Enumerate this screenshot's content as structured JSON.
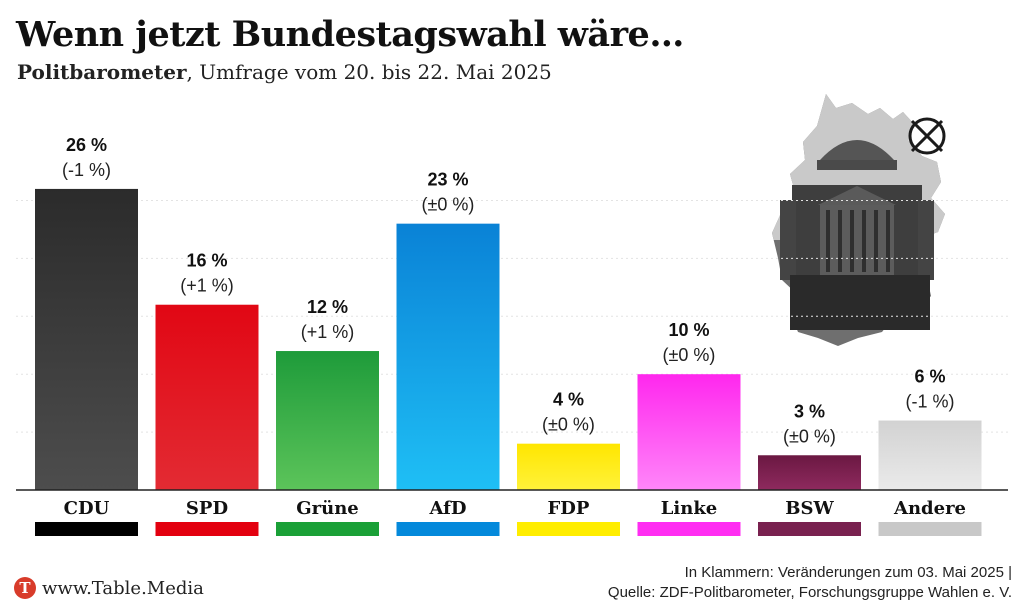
{
  "header": {
    "title": "Wenn jetzt Bundestagswahl wäre…",
    "subtitle_bold": "Politbarometer",
    "subtitle_rest": ", Umfrage vom 20. bis 22. Mai 2025"
  },
  "chart_data": {
    "type": "bar",
    "categories": [
      "CDU",
      "SPD",
      "Grüne",
      "AfD",
      "FDP",
      "Linke",
      "BSW",
      "Andere"
    ],
    "values": [
      26,
      16,
      12,
      23,
      4,
      10,
      3,
      6
    ],
    "value_labels": [
      "26 %",
      "16 %",
      "12 %",
      "23 %",
      "4 %",
      "10 %",
      "3 %",
      "6 %"
    ],
    "change_labels": [
      "(-1 %)",
      "(+1 %)",
      "(+1 %)",
      "(±0 %)",
      "(±0 %)",
      "(±0 %)",
      "(±0 %)",
      "(-1 %)"
    ],
    "colors": [
      {
        "top": "#2b2b2b",
        "bottom": "#4d4d4d",
        "swatch": "#000000"
      },
      {
        "top": "#e10714",
        "bottom": "#e32b33",
        "swatch": "#e3000f"
      },
      {
        "top": "#1e9b3a",
        "bottom": "#5cc45a",
        "swatch": "#1aa037"
      },
      {
        "top": "#0a82d6",
        "bottom": "#1fbff5",
        "swatch": "#0489db"
      },
      {
        "top": "#ffe600",
        "bottom": "#fff23a",
        "swatch": "#ffed00"
      },
      {
        "top": "#ff27ee",
        "bottom": "#ff86f9",
        "swatch": "#ff2df2"
      },
      {
        "top": "#6b1842",
        "bottom": "#8e2a5e",
        "swatch": "#79214f"
      },
      {
        "top": "#d2d2d2",
        "bottom": "#eaeaea",
        "swatch": "#c8c8c8"
      }
    ],
    "ylim": [
      0,
      30
    ],
    "grid": true,
    "xlabel": "",
    "ylabel": ""
  },
  "footer": {
    "note_line1": "In Klammern: Veränderungen zum 03. Mai 2025 |",
    "note_line2": "Quelle: ZDF-Politbarometer, Forschungsgruppe Wahlen e. V.",
    "brand_initial": "T",
    "brand": "www.Table.Media"
  },
  "illustration": {
    "icon": "germany-map-reichstag-icon",
    "ballot_icon": "ballot-cross-icon"
  }
}
